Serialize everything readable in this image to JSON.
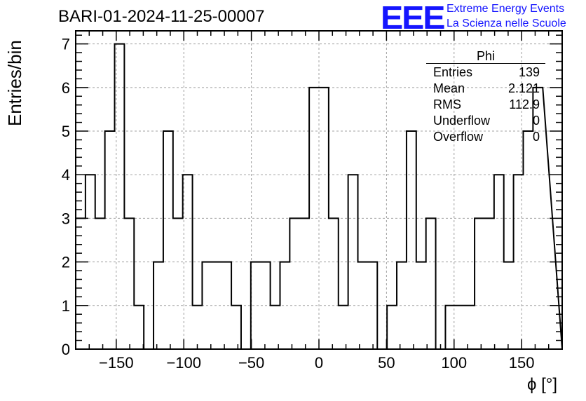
{
  "chart_data": {
    "type": "histogram",
    "title": "BARI-01-2024-11-25-00007",
    "xlabel": "ϕ [°]",
    "ylabel": "Entries/bin",
    "xlim": [
      -180,
      180
    ],
    "ylim": [
      0,
      7.3
    ],
    "grid": true,
    "bin_width": 7.2,
    "counts": [
      3,
      4,
      3,
      5,
      7,
      3,
      1,
      0,
      2,
      5,
      3,
      4,
      1,
      2,
      2,
      2,
      1,
      0,
      2,
      2,
      1,
      2,
      3,
      3,
      6,
      6,
      3,
      1,
      4,
      2,
      2,
      0,
      1,
      2,
      5,
      2,
      3,
      0,
      1,
      1,
      1,
      3,
      3,
      4,
      2,
      4,
      5,
      6
    ],
    "xticks": [
      -150,
      -100,
      -50,
      0,
      50,
      100,
      150
    ],
    "xtick_labels": [
      "−150",
      "−100",
      "−50",
      "0",
      "50",
      "100",
      "150"
    ],
    "yticks": [
      0,
      1,
      2,
      3,
      4,
      5,
      6,
      7
    ],
    "ytick_labels": [
      "0",
      "1",
      "2",
      "3",
      "4",
      "5",
      "6",
      "7"
    ]
  },
  "stats_box": {
    "title": "Phi",
    "rows": [
      {
        "label": "Entries",
        "value": "139"
      },
      {
        "label": "Mean",
        "value": "2.121"
      },
      {
        "label": "RMS",
        "value": "112.9"
      },
      {
        "label": "Underflow",
        "value": "0"
      },
      {
        "label": "Overflow",
        "value": "0"
      }
    ]
  },
  "logo": {
    "mark": "EEE",
    "line1": "Extreme Energy Events",
    "line2": "La Scienza nelle Scuole",
    "color": "#1515ff"
  }
}
